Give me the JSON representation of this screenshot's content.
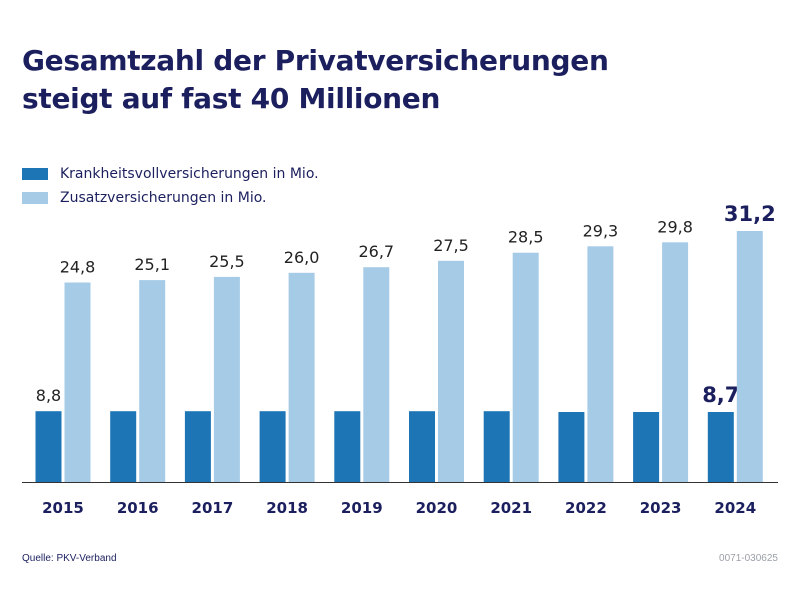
{
  "title_line1": "Gesamtzahl der Privatversicherungen",
  "title_line2": "steigt auf fast 40 Millionen",
  "colors": {
    "title": "#1b1f5e",
    "series_dark": "#1e75b6",
    "series_light": "#a6cbe6",
    "axis": "#333333"
  },
  "chart_data": {
    "type": "bar",
    "title": "Gesamtzahl der Privatversicherungen steigt auf fast 40 Millionen",
    "categories": [
      "2015",
      "2016",
      "2017",
      "2018",
      "2019",
      "2020",
      "2021",
      "2022",
      "2023",
      "2024"
    ],
    "series": [
      {
        "name": "Krankheitsvollversicherungen in Mio.",
        "values": [
          8.8,
          8.8,
          8.8,
          8.8,
          8.8,
          8.8,
          8.8,
          8.7,
          8.7,
          8.7
        ],
        "labels": [
          "8,8",
          "",
          "",
          "",
          "",
          "",
          "",
          "",
          "",
          "8,7"
        ]
      },
      {
        "name": "Zusatzversicherungen in Mio.",
        "values": [
          24.8,
          25.1,
          25.5,
          26.0,
          26.7,
          27.5,
          28.5,
          29.3,
          29.8,
          31.2
        ],
        "labels": [
          "24,8",
          "25,1",
          "25,5",
          "26,0",
          "26,7",
          "27,5",
          "28,5",
          "29,3",
          "29,8",
          "31,2"
        ]
      }
    ],
    "xlabel": "",
    "ylabel": "",
    "ylim": [
      0,
      31.2
    ],
    "grid": false,
    "legend": "top-left"
  },
  "footer": {
    "source": "Quelle: PKV-Verband",
    "code": "0071-030625"
  }
}
